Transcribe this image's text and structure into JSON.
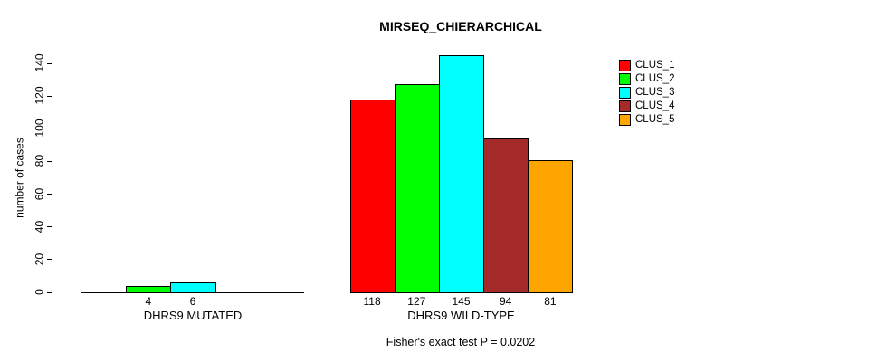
{
  "title": "MIRSEQ_CHIERARCHICAL",
  "chart_data": {
    "type": "bar",
    "title": "MIRSEQ_CHIERARCHICAL",
    "xlabel": "",
    "ylabel": "number of cases",
    "ylim": [
      0,
      145
    ],
    "yticks": [
      0,
      20,
      40,
      60,
      80,
      100,
      120,
      140
    ],
    "grid": false,
    "legend_position": "top-right",
    "clusters": [
      {
        "name": "CLUS_1",
        "color": "#FF0000"
      },
      {
        "name": "CLUS_2",
        "color": "#00FF00"
      },
      {
        "name": "CLUS_3",
        "color": "#00FFFF"
      },
      {
        "name": "CLUS_4",
        "color": "#A52A2A"
      },
      {
        "name": "CLUS_5",
        "color": "#FFA500"
      }
    ],
    "groups": [
      {
        "label": "DHRS9 MUTATED",
        "values": [
          {
            "cluster": "CLUS_2",
            "value": 4
          },
          {
            "cluster": "CLUS_3",
            "value": 6
          }
        ]
      },
      {
        "label": "DHRS9 WILD-TYPE",
        "values": [
          {
            "cluster": "CLUS_1",
            "value": 118
          },
          {
            "cluster": "CLUS_2",
            "value": 127
          },
          {
            "cluster": "CLUS_3",
            "value": 145
          },
          {
            "cluster": "CLUS_4",
            "value": 94
          },
          {
            "cluster": "CLUS_5",
            "value": 81
          }
        ]
      }
    ],
    "annotation": "Fisher's exact test P = 0.0202"
  }
}
